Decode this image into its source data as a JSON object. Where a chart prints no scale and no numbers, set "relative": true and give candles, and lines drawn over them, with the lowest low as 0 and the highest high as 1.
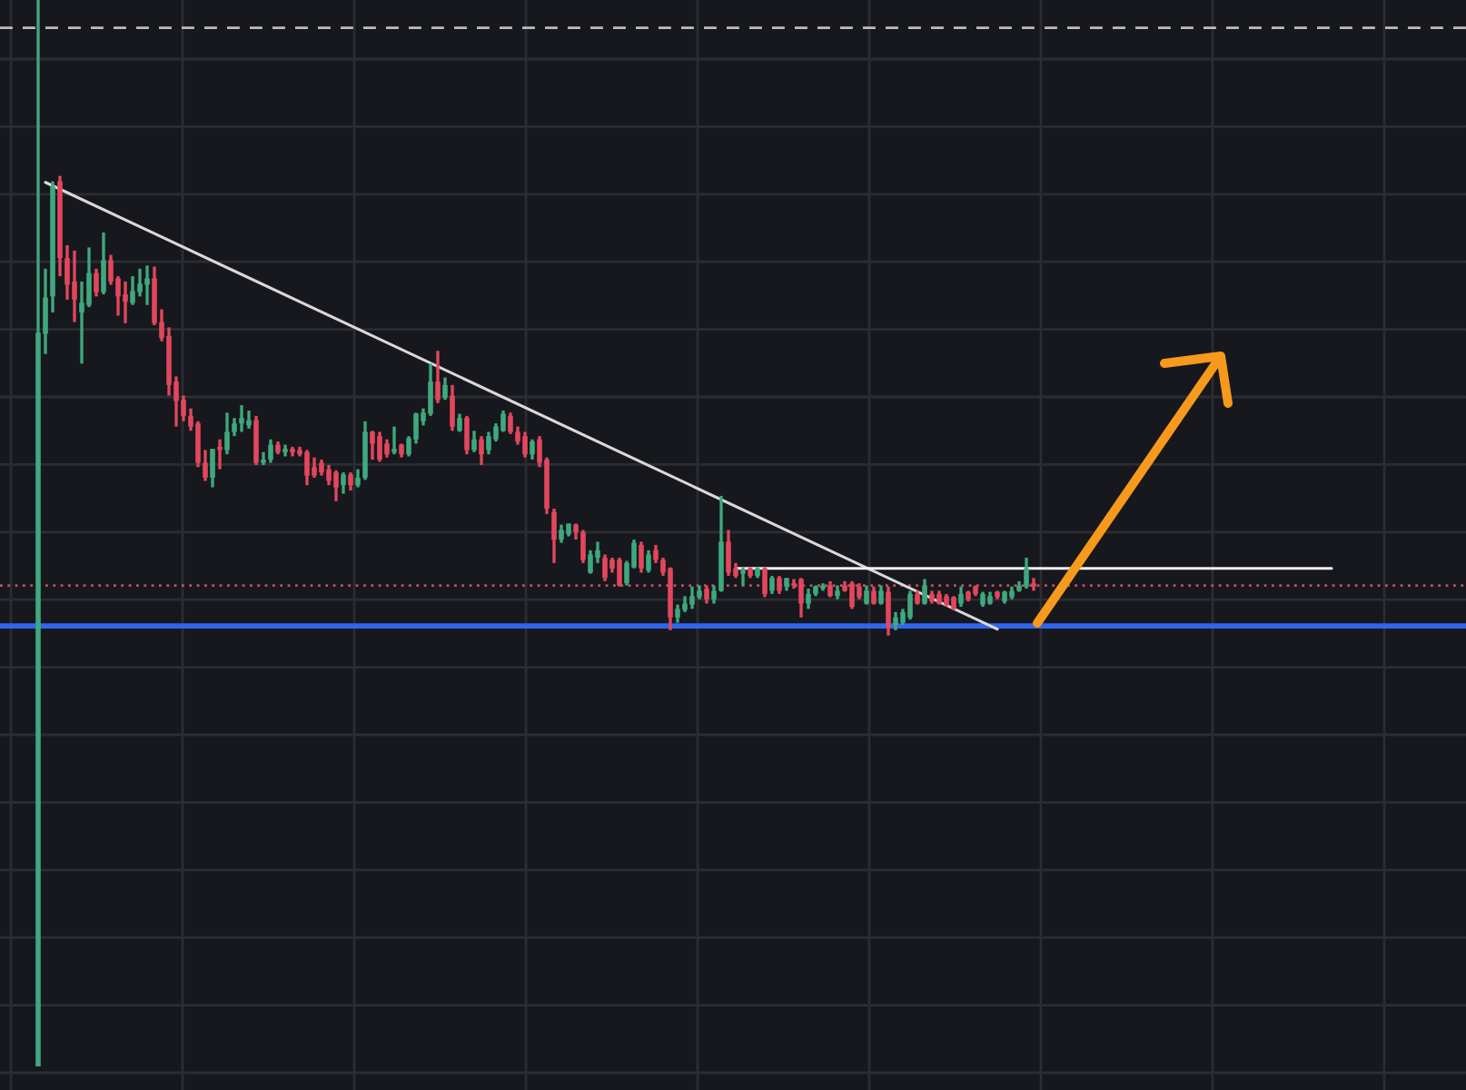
{
  "chart_data": {
    "type": "candlestick",
    "relative": true,
    "grid": true,
    "tick_labels": false,
    "categories": [
      null,
      null,
      null,
      null,
      null,
      null,
      null,
      null,
      null,
      null,
      null,
      null,
      null,
      null,
      null,
      null,
      null,
      null,
      null,
      null,
      null,
      null,
      null,
      null,
      null,
      null,
      null,
      null,
      null,
      null,
      null,
      null,
      null,
      null,
      null,
      null,
      null,
      null,
      null,
      null,
      null,
      null,
      null,
      null,
      null,
      null,
      null,
      null,
      null,
      null,
      null,
      null,
      null,
      null,
      null,
      null,
      null,
      null,
      null,
      null,
      null,
      null,
      null,
      null,
      null,
      null,
      null,
      null,
      null,
      null,
      null,
      null,
      null,
      null,
      null,
      null,
      null,
      null,
      null,
      null,
      null,
      null,
      null,
      null,
      null,
      null,
      null,
      null,
      null,
      null,
      null,
      null,
      null,
      null,
      null,
      null,
      null,
      null,
      null,
      null,
      null,
      null,
      null,
      null,
      null,
      null,
      null,
      null,
      null,
      null,
      null,
      null,
      null,
      null,
      null,
      null,
      null,
      null,
      null,
      null,
      null,
      null,
      null,
      null,
      null,
      null,
      null,
      null,
      null,
      null,
      null,
      null,
      null,
      null,
      null,
      null,
      null,
      null,
      null,
      null,
      null,
      null,
      null,
      null,
      null,
      null,
      null,
      null,
      null,
      null,
      null,
      null,
      null,
      null,
      null,
      null,
      null,
      null,
      null,
      null,
      null,
      null,
      null,
      null,
      null,
      null,
      null,
      null,
      null,
      null,
      null,
      null,
      null,
      null,
      null,
      null,
      null,
      null,
      null
    ],
    "ohlc": [
      [
        0,
        1,
        0,
        0.688
      ],
      [
        0.687,
        0.748,
        0.668,
        0.721
      ],
      [
        0.722,
        0.83,
        0.707,
        0.825
      ],
      [
        0.83,
        0.835,
        0.741,
        0.758
      ],
      [
        0.758,
        0.77,
        0.719,
        0.733
      ],
      [
        0.736,
        0.765,
        0.698,
        0.719
      ],
      [
        0.707,
        0.736,
        0.659,
        0.716
      ],
      [
        0.714,
        0.768,
        0.712,
        0.744
      ],
      [
        0.744,
        0.748,
        0.722,
        0.726
      ],
      [
        0.726,
        0.782,
        0.724,
        0.756
      ],
      [
        0.756,
        0.761,
        0.733,
        0.736
      ],
      [
        0.739,
        0.741,
        0.704,
        0.722
      ],
      [
        0.724,
        0.736,
        0.697,
        0.717
      ],
      [
        0.716,
        0.741,
        0.714,
        0.727
      ],
      [
        0.726,
        0.748,
        0.722,
        0.734
      ],
      [
        0.733,
        0.751,
        0.714,
        0.739
      ],
      [
        0.739,
        0.75,
        0.695,
        0.697
      ],
      [
        0.698,
        0.71,
        0.68,
        0.683
      ],
      [
        0.685,
        0.693,
        0.629,
        0.639
      ],
      [
        0.642,
        0.647,
        0.6,
        0.624
      ],
      [
        0.625,
        0.629,
        0.605,
        0.61
      ],
      [
        0.61,
        0.617,
        0.596,
        0.6
      ],
      [
        0.603,
        0.605,
        0.562,
        0.566
      ],
      [
        0.566,
        0.578,
        0.549,
        0.552
      ],
      [
        0.552,
        0.579,
        0.543,
        0.579
      ],
      [
        0.581,
        0.588,
        0.56,
        0.578
      ],
      [
        0.578,
        0.613,
        0.574,
        0.595
      ],
      [
        0.595,
        0.608,
        0.591,
        0.603
      ],
      [
        0.603,
        0.62,
        0.595,
        0.608
      ],
      [
        0.601,
        0.615,
        0.598,
        0.606
      ],
      [
        0.606,
        0.61,
        0.564,
        0.566
      ],
      [
        0.566,
        0.576,
        0.564,
        0.569
      ],
      [
        0.569,
        0.588,
        0.566,
        0.583
      ],
      [
        0.583,
        0.586,
        0.574,
        0.576
      ],
      [
        0.576,
        0.583,
        0.572,
        0.579
      ],
      [
        0.579,
        0.581,
        0.572,
        0.576
      ],
      [
        0.578,
        0.581,
        0.572,
        0.574
      ],
      [
        0.576,
        0.578,
        0.545,
        0.554
      ],
      [
        0.562,
        0.571,
        0.552,
        0.554
      ],
      [
        0.566,
        0.569,
        0.554,
        0.557
      ],
      [
        0.56,
        0.564,
        0.545,
        0.549
      ],
      [
        0.557,
        0.559,
        0.53,
        0.543
      ],
      [
        0.545,
        0.557,
        0.537,
        0.555
      ],
      [
        0.555,
        0.557,
        0.54,
        0.545
      ],
      [
        0.545,
        0.56,
        0.543,
        0.552
      ],
      [
        0.552,
        0.605,
        0.55,
        0.595
      ],
      [
        0.595,
        0.596,
        0.569,
        0.584
      ],
      [
        0.591,
        0.595,
        0.567,
        0.569
      ],
      [
        0.584,
        0.588,
        0.571,
        0.574
      ],
      [
        0.576,
        0.6,
        0.574,
        0.579
      ],
      [
        0.583,
        0.584,
        0.571,
        0.574
      ],
      [
        0.574,
        0.591,
        0.572,
        0.589
      ],
      [
        0.588,
        0.613,
        0.584,
        0.612
      ],
      [
        0.605,
        0.617,
        0.601,
        0.613
      ],
      [
        0.612,
        0.659,
        0.61,
        0.642
      ],
      [
        0.642,
        0.671,
        0.622,
        0.625
      ],
      [
        0.627,
        0.646,
        0.625,
        0.639
      ],
      [
        0.629,
        0.639,
        0.596,
        0.6
      ],
      [
        0.596,
        0.612,
        0.595,
        0.608
      ],
      [
        0.608,
        0.61,
        0.574,
        0.578
      ],
      [
        0.578,
        0.596,
        0.576,
        0.588
      ],
      [
        0.588,
        0.591,
        0.564,
        0.574
      ],
      [
        0.578,
        0.595,
        0.574,
        0.591
      ],
      [
        0.588,
        0.603,
        0.586,
        0.6
      ],
      [
        0.596,
        0.615,
        0.595,
        0.612
      ],
      [
        0.61,
        0.613,
        0.593,
        0.595
      ],
      [
        0.595,
        0.6,
        0.583,
        0.586
      ],
      [
        0.591,
        0.595,
        0.571,
        0.574
      ],
      [
        0.574,
        0.588,
        0.569,
        0.586
      ],
      [
        0.588,
        0.591,
        0.562,
        0.566
      ],
      [
        0.569,
        0.571,
        0.518,
        0.523
      ],
      [
        0.52,
        0.523,
        0.472,
        0.494
      ],
      [
        0.494,
        0.508,
        0.491,
        0.503
      ],
      [
        0.499,
        0.509,
        0.497,
        0.509
      ],
      [
        0.508,
        0.509,
        0.494,
        0.501
      ],
      [
        0.501,
        0.503,
        0.472,
        0.475
      ],
      [
        0.463,
        0.484,
        0.462,
        0.48
      ],
      [
        0.477,
        0.492,
        0.472,
        0.484
      ],
      [
        0.477,
        0.48,
        0.455,
        0.458
      ],
      [
        0.475,
        0.477,
        0.463,
        0.467
      ],
      [
        0.475,
        0.477,
        0.45,
        0.451
      ],
      [
        0.453,
        0.474,
        0.451,
        0.472
      ],
      [
        0.468,
        0.494,
        0.467,
        0.491
      ],
      [
        0.489,
        0.492,
        0.463,
        0.467
      ],
      [
        0.465,
        0.484,
        0.463,
        0.48
      ],
      [
        0.484,
        0.489,
        0.472,
        0.475
      ],
      [
        0.475,
        0.477,
        0.46,
        0.463
      ],
      [
        0.467,
        0.468,
        0.409,
        0.421
      ],
      [
        0.421,
        0.433,
        0.416,
        0.429
      ],
      [
        0.428,
        0.441,
        0.426,
        0.434
      ],
      [
        0.433,
        0.45,
        0.429,
        0.441
      ],
      [
        0.44,
        0.451,
        0.438,
        0.446
      ],
      [
        0.448,
        0.451,
        0.434,
        0.438
      ],
      [
        0.438,
        0.451,
        0.434,
        0.446
      ],
      [
        0.446,
        0.535,
        0.445,
        0.492
      ],
      [
        0.492,
        0.503,
        0.46,
        0.463
      ],
      [
        0.467,
        0.472,
        0.458,
        0.46
      ],
      [
        0.462,
        0.468,
        0.451,
        0.465
      ],
      [
        0.467,
        0.468,
        0.458,
        0.46
      ],
      [
        0.46,
        0.468,
        0.458,
        0.467
      ],
      [
        0.467,
        0.468,
        0.44,
        0.443
      ],
      [
        0.446,
        0.46,
        0.443,
        0.458
      ],
      [
        0.458,
        0.46,
        0.443,
        0.446
      ],
      [
        0.45,
        0.458,
        0.446,
        0.458
      ],
      [
        0.453,
        0.457,
        0.448,
        0.451
      ],
      [
        0.457,
        0.458,
        0.421,
        0.434
      ],
      [
        0.434,
        0.448,
        0.429,
        0.443
      ],
      [
        0.443,
        0.451,
        0.441,
        0.45
      ],
      [
        0.448,
        0.453,
        0.446,
        0.451
      ],
      [
        0.451,
        0.455,
        0.44,
        0.441
      ],
      [
        0.441,
        0.451,
        0.438,
        0.446
      ],
      [
        0.451,
        0.455,
        0.445,
        0.446
      ],
      [
        0.453,
        0.455,
        0.429,
        0.431
      ],
      [
        0.45,
        0.453,
        0.438,
        0.44
      ],
      [
        0.434,
        0.451,
        0.433,
        0.446
      ],
      [
        0.446,
        0.45,
        0.433,
        0.434
      ],
      [
        0.434,
        0.451,
        0.433,
        0.446
      ],
      [
        0.445,
        0.45,
        0.404,
        0.412
      ],
      [
        0.414,
        0.426,
        0.409,
        0.421
      ],
      [
        0.416,
        0.429,
        0.414,
        0.426
      ],
      [
        0.421,
        0.446,
        0.419,
        0.443
      ],
      [
        0.443,
        0.446,
        0.433,
        0.434
      ],
      [
        0.434,
        0.457,
        0.433,
        0.451
      ],
      [
        0.443,
        0.446,
        0.434,
        0.436
      ],
      [
        0.443,
        0.446,
        0.433,
        0.434
      ],
      [
        0.441,
        0.443,
        0.431,
        0.433
      ],
      [
        0.44,
        0.441,
        0.428,
        0.429
      ],
      [
        0.434,
        0.45,
        0.431,
        0.443
      ],
      [
        0.445,
        0.446,
        0.436,
        0.438
      ],
      [
        0.45,
        0.451,
        0.441,
        0.443
      ],
      [
        0.433,
        0.445,
        0.431,
        0.443
      ],
      [
        0.434,
        0.445,
        0.433,
        0.441
      ],
      [
        0.445,
        0.446,
        0.438,
        0.44
      ],
      [
        0.436,
        0.446,
        0.434,
        0.445
      ],
      [
        0.44,
        0.45,
        0.438,
        0.446
      ],
      [
        0.446,
        0.455,
        0.445,
        0.451
      ],
      [
        0.45,
        0.477,
        0.448,
        0.467
      ],
      [
        0.453,
        0.458,
        0.446,
        0.45
      ],
      null,
      null,
      null,
      null,
      null,
      null,
      null,
      null,
      null,
      null,
      null,
      null,
      null,
      null,
      null,
      null,
      null,
      null,
      null,
      null,
      null,
      null,
      null,
      null,
      null,
      null,
      null,
      null,
      null,
      null,
      null,
      null,
      null,
      null,
      null,
      null,
      null,
      null,
      null,
      null,
      null
    ],
    "colors": [
      "#3fa87e",
      "#3fa87e",
      "#3fa87e",
      "#e2475d",
      "#e2475d",
      "#e2475d",
      "#3fa87e",
      "#3fa87e",
      "#e2475d",
      "#3fa87e",
      "#e2475d",
      "#e2475d",
      "#e2475d",
      "#3fa87e",
      "#3fa87e",
      "#3fa87e",
      "#e2475d",
      "#e2475d",
      "#e2475d",
      "#e2475d",
      "#e2475d",
      "#e2475d",
      "#e2475d",
      "#e2475d",
      "#3fa87e",
      "#e2475d",
      "#3fa87e",
      "#3fa87e",
      "#3fa87e",
      "#3fa87e",
      "#e2475d",
      "#3fa87e",
      "#3fa87e",
      "#e2475d",
      "#3fa87e",
      "#e2475d",
      "#e2475d",
      "#e2475d",
      "#e2475d",
      "#e2475d",
      "#e2475d",
      "#e2475d",
      "#3fa87e",
      "#e2475d",
      "#3fa87e",
      "#3fa87e",
      "#e2475d",
      "#e2475d",
      "#e2475d",
      "#3fa87e",
      "#e2475d",
      "#3fa87e",
      "#3fa87e",
      "#3fa87e",
      "#3fa87e",
      "#e2475d",
      "#3fa87e",
      "#e2475d",
      "#3fa87e",
      "#e2475d",
      "#3fa87e",
      "#e2475d",
      "#3fa87e",
      "#3fa87e",
      "#3fa87e",
      "#e2475d",
      "#e2475d",
      "#e2475d",
      "#3fa87e",
      "#e2475d",
      "#e2475d",
      "#e2475d",
      "#3fa87e",
      "#3fa87e",
      "#e2475d",
      "#e2475d",
      "#3fa87e",
      "#3fa87e",
      "#e2475d",
      "#e2475d",
      "#e2475d",
      "#3fa87e",
      "#3fa87e",
      "#e2475d",
      "#3fa87e",
      "#e2475d",
      "#e2475d",
      "#e2475d",
      "#3fa87e",
      "#3fa87e",
      "#3fa87e",
      "#3fa87e",
      "#e2475d",
      "#3fa87e",
      "#3fa87e",
      "#e2475d",
      "#e2475d",
      "#3fa87e",
      "#e2475d",
      "#3fa87e",
      "#e2475d",
      "#3fa87e",
      "#e2475d",
      "#3fa87e",
      "#e2475d",
      "#e2475d",
      "#3fa87e",
      "#3fa87e",
      "#3fa87e",
      "#e2475d",
      "#3fa87e",
      "#e2475d",
      "#e2475d",
      "#e2475d",
      "#3fa87e",
      "#e2475d",
      "#3fa87e",
      "#e2475d",
      "#3fa87e",
      "#3fa87e",
      "#3fa87e",
      "#e2475d",
      "#3fa87e",
      "#e2475d",
      "#e2475d",
      "#e2475d",
      "#e2475d",
      "#3fa87e",
      "#e2475d",
      "#e2475d",
      "#3fa87e",
      "#3fa87e",
      "#e2475d",
      "#3fa87e",
      "#3fa87e",
      "#3fa87e",
      "#3fa87e",
      "#e2475d",
      null,
      null,
      null,
      null,
      null,
      null,
      null,
      null,
      null,
      null,
      null,
      null,
      null,
      null,
      null,
      null,
      null,
      null,
      null,
      null,
      null,
      null,
      null,
      null,
      null,
      null,
      null,
      null,
      null,
      null,
      null,
      null,
      null,
      null,
      null,
      null,
      null,
      null,
      null,
      null,
      null
    ],
    "series": [
      {
        "type": "line",
        "color": "#d9d9d9",
        "values": [
          null,
          0.829,
          null,
          null,
          null,
          null,
          null,
          null,
          null,
          null,
          null,
          null,
          null,
          null,
          null,
          null,
          null,
          null,
          null,
          null,
          null,
          null,
          null,
          null,
          null,
          null,
          null,
          null,
          null,
          null,
          null,
          null,
          null,
          null,
          null,
          null,
          null,
          null,
          null,
          null,
          null,
          null,
          null,
          null,
          null,
          null,
          null,
          null,
          null,
          null,
          null,
          null,
          null,
          null,
          null,
          null,
          null,
          null,
          null,
          null,
          null,
          null,
          null,
          null,
          null,
          null,
          null,
          null,
          null,
          null,
          null,
          null,
          null,
          null,
          null,
          null,
          null,
          null,
          null,
          null,
          null,
          null,
          null,
          null,
          null,
          null,
          null,
          null,
          null,
          null,
          null,
          null,
          null,
          null,
          null,
          null,
          null,
          null,
          null,
          null,
          null,
          null,
          null,
          null,
          null,
          null,
          null,
          null,
          null,
          null,
          null,
          null,
          null,
          null,
          null,
          null,
          null,
          null,
          null,
          null,
          null,
          null,
          null,
          null,
          null,
          null,
          null,
          null,
          null,
          null,
          null,
          null,
          0.41,
          null,
          null,
          null,
          null,
          null,
          null,
          null,
          null,
          null,
          null,
          null,
          null,
          null,
          null,
          null,
          null,
          null,
          null,
          null,
          null,
          null,
          null,
          null,
          null,
          null,
          null,
          null,
          null,
          null,
          null,
          null,
          null,
          null,
          null,
          null,
          null,
          null,
          null,
          null,
          null,
          null,
          null,
          null,
          null,
          null,
          null
        ]
      },
      {
        "type": "line",
        "color": "#f0f0f0",
        "values": [
          null,
          null,
          null,
          null,
          null,
          null,
          null,
          null,
          null,
          null,
          null,
          null,
          null,
          null,
          null,
          null,
          null,
          null,
          null,
          null,
          null,
          null,
          null,
          null,
          null,
          null,
          null,
          null,
          null,
          null,
          null,
          null,
          null,
          null,
          null,
          null,
          null,
          null,
          null,
          null,
          null,
          null,
          null,
          null,
          null,
          null,
          null,
          null,
          null,
          null,
          null,
          null,
          null,
          null,
          null,
          null,
          null,
          null,
          null,
          null,
          null,
          null,
          null,
          null,
          null,
          null,
          null,
          null,
          null,
          null,
          null,
          null,
          null,
          null,
          null,
          null,
          null,
          null,
          null,
          null,
          null,
          null,
          null,
          null,
          null,
          null,
          null,
          null,
          null,
          null,
          null,
          null,
          null,
          null,
          null,
          null,
          0.467,
          null,
          null,
          null,
          null,
          null,
          null,
          null,
          null,
          null,
          null,
          null,
          null,
          null,
          null,
          null,
          null,
          null,
          null,
          null,
          null,
          null,
          null,
          null,
          null,
          null,
          null,
          null,
          null,
          null,
          null,
          null,
          null,
          null,
          null,
          null,
          null,
          null,
          null,
          null,
          null,
          null,
          null,
          null,
          null,
          null,
          null,
          null,
          null,
          null,
          null,
          null,
          null,
          null,
          null,
          null,
          null,
          null,
          null,
          null,
          null,
          null,
          null,
          null,
          null,
          null,
          null,
          null,
          null,
          null,
          null,
          null,
          null,
          null,
          null,
          null,
          null,
          null,
          null,
          null,
          null,
          null,
          0.467
        ]
      }
    ],
    "ref_lines": [
      {
        "axis": "y",
        "value": 0.974,
        "color": "#bdbdbd",
        "line_style": "dashed"
      },
      {
        "axis": "y",
        "value": 0.451,
        "color": "#c0505a",
        "line_style": "dotted"
      },
      {
        "axis": "y",
        "value": 0.413,
        "color": "#2f66f0",
        "line_style": "solid"
      }
    ]
  }
}
